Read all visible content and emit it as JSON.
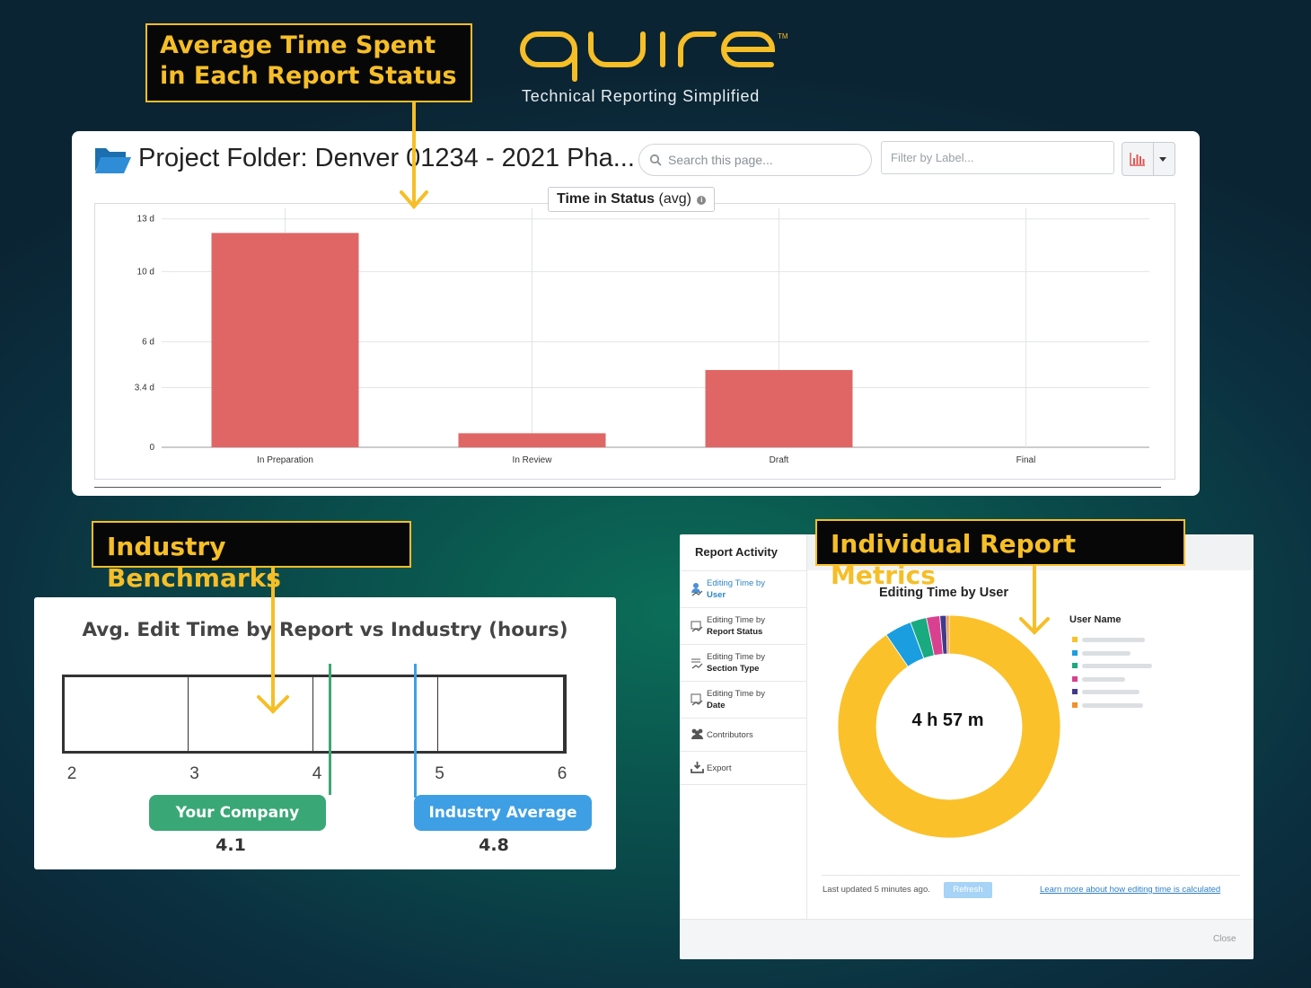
{
  "brand": {
    "logo_text": "quire",
    "trademark": "TM",
    "tagline": "Technical Reporting Simplified"
  },
  "callouts": {
    "status_line1": "Average Time Spent",
    "status_line2": "in Each Report Status",
    "benchmarks": "Industry Benchmarks",
    "metrics": "Individual Report Metrics"
  },
  "project": {
    "title": "Project Folder: Denver 01234 - 2021 Pha...",
    "search_placeholder": "Search this page...",
    "filter_placeholder": "Filter by Label..."
  },
  "chart_data": [
    {
      "type": "bar",
      "title": "Time in Status",
      "title_suffix": "(avg)",
      "categories": [
        "In Preparation",
        "In Review",
        "Draft",
        "Final"
      ],
      "values": [
        12.2,
        0.8,
        4.4,
        0
      ],
      "unit": "d",
      "yticks": [
        0,
        3.4,
        6,
        10,
        13
      ],
      "ytick_labels": [
        "0",
        "3.4 d",
        "6 d",
        "10 d",
        "13 d"
      ],
      "ylim": [
        0,
        13.6
      ],
      "grid": true,
      "color": "#e06666"
    },
    {
      "type": "bar",
      "title": "Avg. Edit Time by Report vs Industry (hours)",
      "xlim": [
        2,
        6
      ],
      "xticks": [
        "2",
        "3",
        "4",
        "5",
        "6"
      ],
      "series": [
        {
          "name": "Your Company",
          "value": 4.1,
          "display": "4.1",
          "color": "#3aa876"
        },
        {
          "name": "Industry Average",
          "value": 4.8,
          "display": "4.8",
          "color": "#3e9fe4"
        }
      ]
    },
    {
      "type": "pie",
      "title": "Editing Time by User",
      "center_label": "4 h 57 m",
      "legend_title": "User Name",
      "slices": [
        {
          "value": 88.0,
          "color": "#fbc12a"
        },
        {
          "value": 3.8,
          "color": "#1a9ee0"
        },
        {
          "value": 2.3,
          "color": "#19aa7f"
        },
        {
          "value": 1.9,
          "color": "#d94190"
        },
        {
          "value": 0.9,
          "color": "#3f3a8c"
        },
        {
          "value": 0.4,
          "color": "#f2902a"
        }
      ]
    }
  ],
  "activity": {
    "header": "Report Activity",
    "items": [
      {
        "line1": "Editing Time by",
        "line2": "User"
      },
      {
        "line1": "Editing Time by",
        "line2": "Report Status"
      },
      {
        "line1": "Editing Time by",
        "line2": "Section Type"
      },
      {
        "line1": "Editing Time by",
        "line2": "Date"
      },
      {
        "line1": "Contributors",
        "line2": ""
      },
      {
        "line1": "Export",
        "line2": ""
      }
    ],
    "last_updated": "Last updated 5 minutes ago.",
    "refresh": "Refresh",
    "learn_more": "Learn more about how editing time is calculated",
    "close": "Close"
  },
  "colors": {
    "accent_yellow": "#f6be27",
    "bar_red": "#e06666",
    "company_green": "#3aa876",
    "industry_blue": "#3e9fe4"
  }
}
